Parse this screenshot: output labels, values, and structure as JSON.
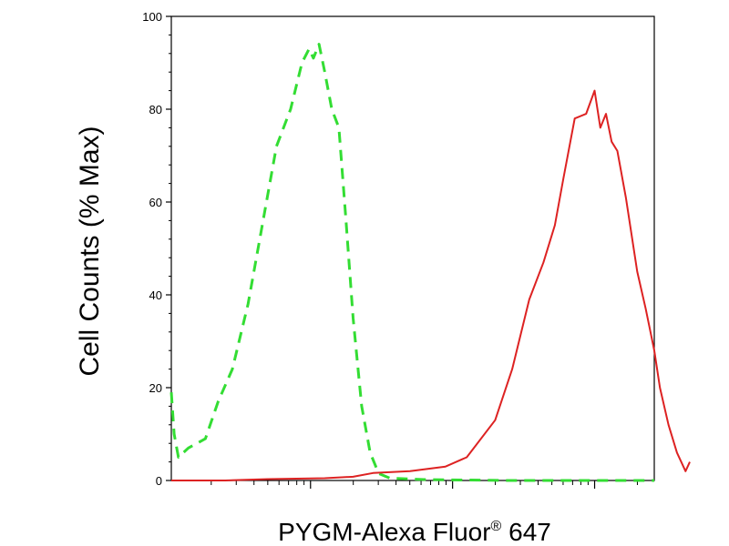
{
  "chart_data": {
    "type": "line",
    "xlabel": {
      "main": "PYGM-Alexa Fluor",
      "sup": "®",
      "tail": " 647"
    },
    "ylabel": "Cell Counts (% Max)",
    "ylim": [
      0,
      100
    ],
    "x_scale": "log",
    "grid": false,
    "legend": "none",
    "y_ticks": [
      "0",
      "20",
      "40",
      "60",
      "80",
      "100"
    ],
    "y_tick_values": [
      0,
      20,
      40,
      60,
      80,
      100
    ],
    "x_major_ticks": [
      1,
      2,
      3
    ],
    "x_minor_per_decade": [
      2,
      3,
      4,
      5,
      6,
      7,
      8,
      9
    ],
    "x_range_log": [
      0.02,
      3.42
    ],
    "colors": {
      "control": "#33dd33",
      "sample": "#dd2222",
      "axis": "#000000"
    },
    "series": [
      {
        "style": "dashed",
        "color": "#33dd33",
        "points": [
          [
            0.02,
            19
          ],
          [
            0.04,
            10
          ],
          [
            0.07,
            5
          ],
          [
            0.14,
            7
          ],
          [
            0.26,
            9
          ],
          [
            0.35,
            17
          ],
          [
            0.45,
            24
          ],
          [
            0.56,
            38
          ],
          [
            0.66,
            55
          ],
          [
            0.76,
            72
          ],
          [
            0.86,
            80
          ],
          [
            0.94,
            90
          ],
          [
            0.99,
            93
          ],
          [
            1.02,
            91
          ],
          [
            1.06,
            94
          ],
          [
            1.1,
            88
          ],
          [
            1.15,
            80
          ],
          [
            1.2,
            76
          ],
          [
            1.25,
            56
          ],
          [
            1.3,
            35
          ],
          [
            1.36,
            16
          ],
          [
            1.42,
            6
          ],
          [
            1.48,
            1.5
          ],
          [
            1.56,
            0.5
          ],
          [
            1.8,
            0.2
          ],
          [
            2.4,
            0
          ],
          [
            3.42,
            0
          ]
        ]
      },
      {
        "style": "solid",
        "color": "#dd2222",
        "points": [
          [
            0.02,
            0
          ],
          [
            0.4,
            0
          ],
          [
            0.7,
            0.3
          ],
          [
            1.1,
            0.5
          ],
          [
            1.3,
            0.8
          ],
          [
            1.44,
            1.6
          ],
          [
            1.7,
            2
          ],
          [
            1.95,
            3
          ],
          [
            2.1,
            5
          ],
          [
            2.3,
            13
          ],
          [
            2.42,
            24
          ],
          [
            2.54,
            39
          ],
          [
            2.64,
            47
          ],
          [
            2.72,
            55
          ],
          [
            2.78,
            65
          ],
          [
            2.86,
            78
          ],
          [
            2.94,
            79
          ],
          [
            3.0,
            84
          ],
          [
            3.04,
            76
          ],
          [
            3.08,
            79
          ],
          [
            3.12,
            73
          ],
          [
            3.16,
            71
          ],
          [
            3.22,
            61
          ],
          [
            3.3,
            45
          ],
          [
            3.36,
            37
          ],
          [
            3.42,
            28
          ],
          [
            3.46,
            20
          ],
          [
            3.52,
            12
          ],
          [
            3.58,
            6
          ],
          [
            3.64,
            2
          ],
          [
            3.67,
            4
          ]
        ]
      }
    ]
  }
}
